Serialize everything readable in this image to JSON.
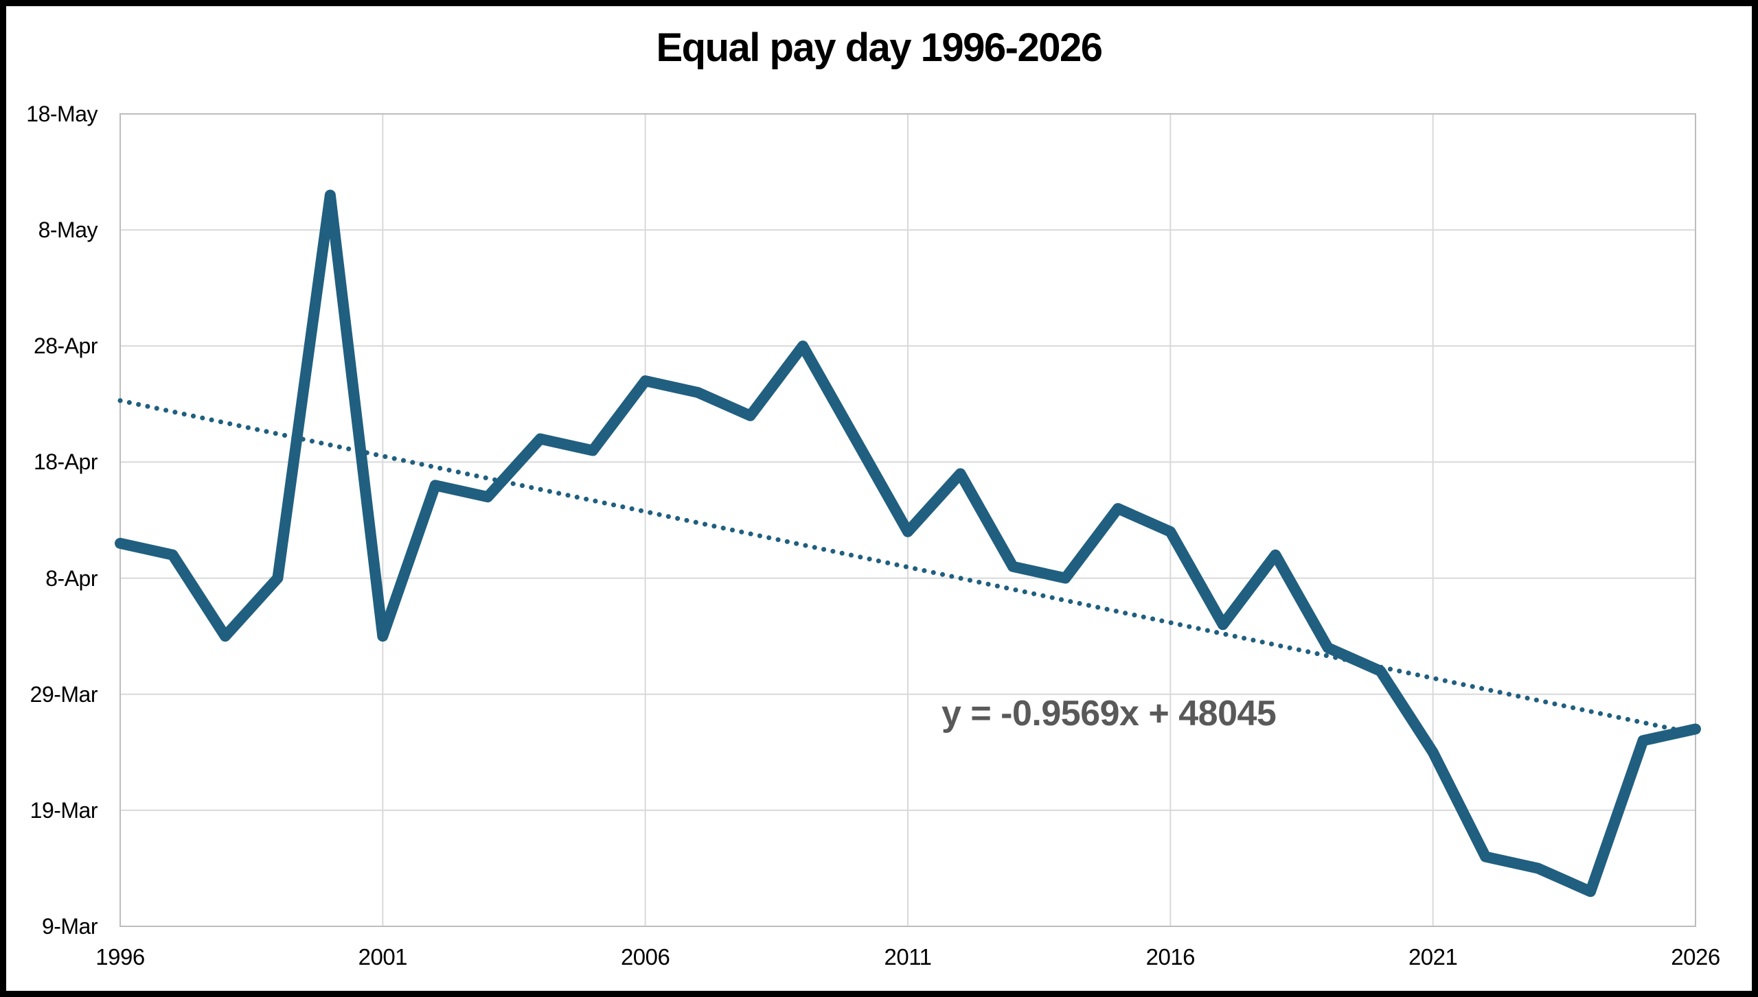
{
  "window": {
    "background": "#FFFFFF",
    "frame_color": "#000000"
  },
  "chart_data": {
    "type": "line",
    "title": "Equal pay day 1996-2026",
    "xlabel": "",
    "ylabel": "",
    "grid": true,
    "legend": "none",
    "xlim": [
      1996,
      2026
    ],
    "ylim_dates": [
      "9-Mar",
      "18-May"
    ],
    "ylim_days_after_9_mar": [
      0,
      70
    ],
    "x_axis_ticks": [
      "1996",
      "2001",
      "2006",
      "2011",
      "2016",
      "2021",
      "2026"
    ],
    "y_axis_ticks": [
      {
        "label": "18-May",
        "day": 70
      },
      {
        "label": "8-May",
        "day": 60
      },
      {
        "label": "28-Apr",
        "day": 50
      },
      {
        "label": "18-Apr",
        "day": 40
      },
      {
        "label": "8-Apr",
        "day": 30
      },
      {
        "label": "29-Mar",
        "day": 20
      },
      {
        "label": "19-Mar",
        "day": 10
      },
      {
        "label": "9-Mar",
        "day": 0
      }
    ],
    "x": [
      1996,
      1997,
      1998,
      1999,
      2000,
      2001,
      2002,
      2003,
      2004,
      2005,
      2006,
      2007,
      2008,
      2009,
      2010,
      2011,
      2012,
      2013,
      2014,
      2015,
      2016,
      2017,
      2018,
      2019,
      2020,
      2021,
      2022,
      2023,
      2024,
      2025,
      2026
    ],
    "series": [
      {
        "name": "Equal pay day",
        "color": "#205F7F",
        "dates": [
          "11-Apr",
          "10-Apr",
          "3-Apr",
          "8-Apr",
          "11-May",
          "3-Apr",
          "16-Apr",
          "15-Apr",
          "20-Apr",
          "19-Apr",
          "25-Apr",
          "24-Apr",
          "22-Apr",
          "28-Apr",
          "20-Apr",
          "12-Apr",
          "17-Apr",
          "9-Apr",
          "8-Apr",
          "14-Apr",
          "12-Apr",
          "4-Apr",
          "10-Apr",
          "2-Apr",
          "31-Mar",
          "24-Mar",
          "15-Mar",
          "14-Mar",
          "12-Mar",
          "25-Mar",
          "26-Mar"
        ],
        "days_after_9_mar": [
          33,
          32,
          25,
          30,
          63,
          25,
          38,
          37,
          42,
          41,
          47,
          46,
          44,
          50,
          42,
          34,
          39,
          31,
          30,
          36,
          34,
          26,
          32,
          24,
          22,
          15,
          6,
          5,
          3,
          16,
          17
        ]
      }
    ],
    "trendline": {
      "equation": "y = -0.9569x + 48045",
      "style": "dotted",
      "color": "#205F7F",
      "equation_color": "#595959",
      "start": {
        "year": 1996,
        "day_after_9_mar": 45.3
      },
      "end": {
        "year": 2026,
        "day_after_9_mar": 16.6
      }
    },
    "colors": {
      "gridline": "#D9D9D9",
      "plot_border": "#BDBDBD",
      "title_text": "#000000",
      "tick_text": "#000000"
    }
  }
}
